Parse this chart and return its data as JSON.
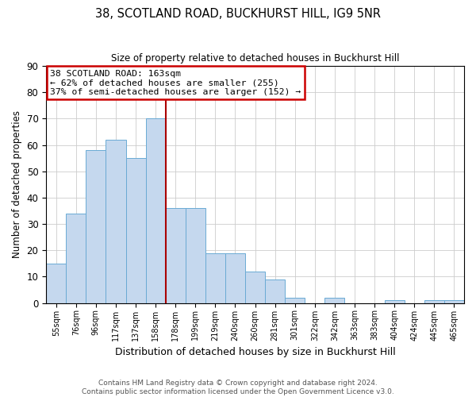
{
  "title": "38, SCOTLAND ROAD, BUCKHURST HILL, IG9 5NR",
  "subtitle": "Size of property relative to detached houses in Buckhurst Hill",
  "xlabel": "Distribution of detached houses by size in Buckhurst Hill",
  "ylabel": "Number of detached properties",
  "bar_labels": [
    "55sqm",
    "76sqm",
    "96sqm",
    "117sqm",
    "137sqm",
    "158sqm",
    "178sqm",
    "199sqm",
    "219sqm",
    "240sqm",
    "260sqm",
    "281sqm",
    "301sqm",
    "322sqm",
    "342sqm",
    "363sqm",
    "383sqm",
    "404sqm",
    "424sqm",
    "445sqm",
    "465sqm"
  ],
  "bar_heights": [
    15,
    34,
    58,
    62,
    55,
    70,
    36,
    36,
    19,
    19,
    12,
    9,
    2,
    0,
    2,
    0,
    0,
    1,
    0,
    1,
    1
  ],
  "bar_color": "#c5d8ee",
  "bar_edge_color": "#6aaad4",
  "vline_x_idx": 6,
  "vline_color": "#aa0000",
  "ylim": [
    0,
    90
  ],
  "yticks": [
    0,
    10,
    20,
    30,
    40,
    50,
    60,
    70,
    80,
    90
  ],
  "annotation_title": "38 SCOTLAND ROAD: 163sqm",
  "annotation_line1": "← 62% of detached houses are smaller (255)",
  "annotation_line2": "37% of semi-detached houses are larger (152) →",
  "annotation_box_color": "#ffffff",
  "annotation_box_edge": "#cc0000",
  "footer1": "Contains HM Land Registry data © Crown copyright and database right 2024.",
  "footer2": "Contains public sector information licensed under the Open Government Licence v3.0.",
  "background_color": "#ffffff",
  "grid_color": "#cccccc"
}
